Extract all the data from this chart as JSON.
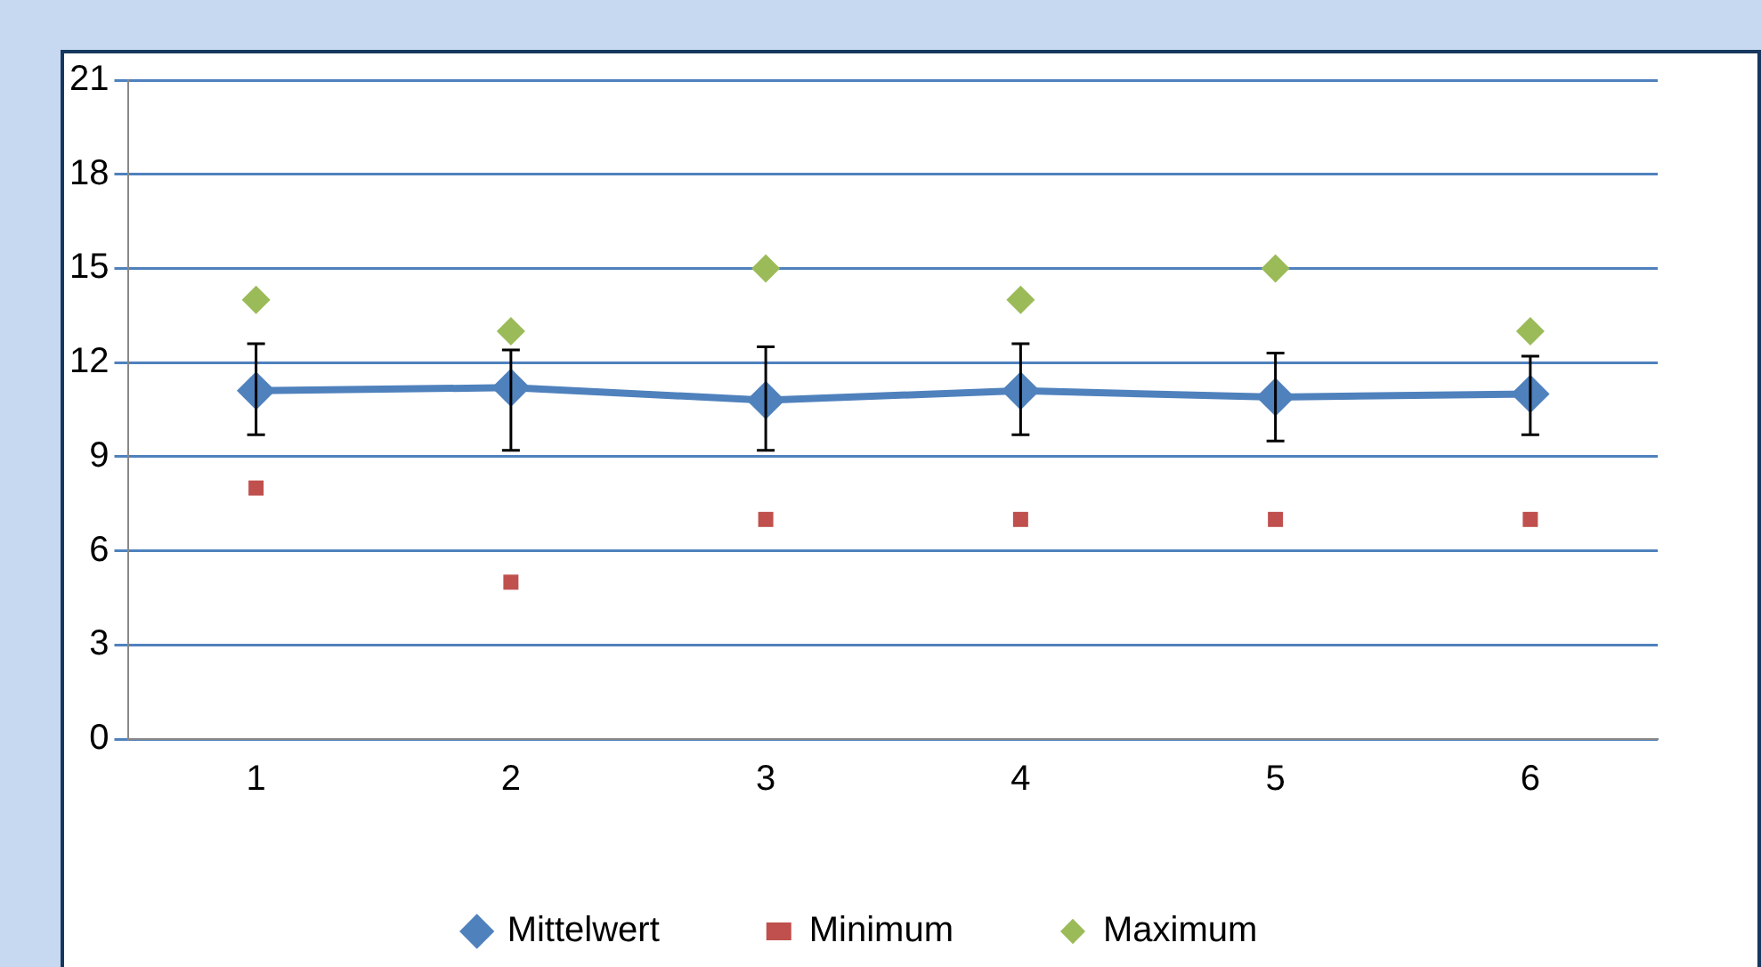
{
  "chart_data": {
    "type": "line",
    "categories": [
      "1",
      "2",
      "3",
      "4",
      "5",
      "6"
    ],
    "series": [
      {
        "name": "Mittelwert",
        "type": "line",
        "color": "#4f81bd",
        "marker": "diamond",
        "values": [
          11.1,
          11.2,
          10.8,
          11.1,
          10.9,
          11.0
        ],
        "errors": [
          [
            9.7,
            12.6
          ],
          [
            9.2,
            12.4
          ],
          [
            9.2,
            12.5
          ],
          [
            9.7,
            12.6
          ],
          [
            9.5,
            12.3
          ],
          [
            9.7,
            12.2
          ]
        ]
      },
      {
        "name": "Minimum",
        "type": "scatter",
        "color": "#c0504d",
        "marker": "square",
        "values": [
          8,
          5,
          7,
          7,
          7,
          7
        ]
      },
      {
        "name": "Maximum",
        "type": "scatter",
        "color": "#9bbb59",
        "marker": "diamond",
        "values": [
          14,
          13,
          15,
          14,
          15,
          13
        ]
      }
    ],
    "ylim": [
      0,
      21
    ],
    "yticks": [
      0,
      3,
      6,
      9,
      12,
      15,
      18,
      21
    ],
    "grid": "y",
    "legend": "bottom"
  }
}
